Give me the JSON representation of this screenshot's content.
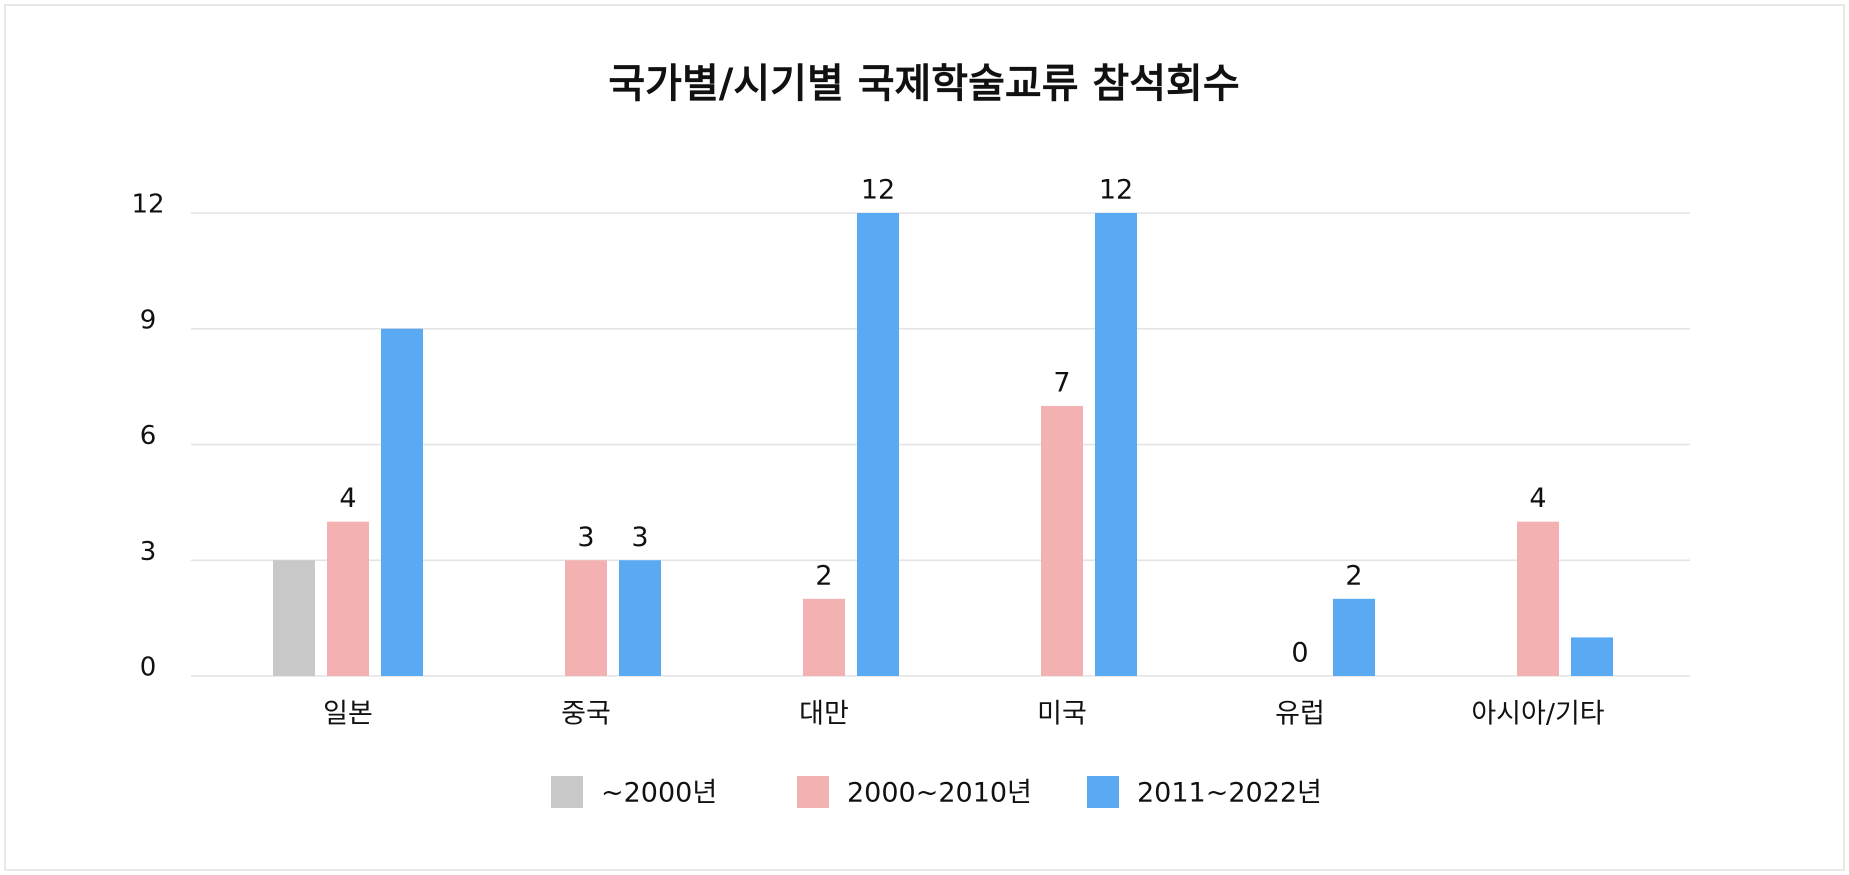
{
  "chart_data": {
    "type": "bar",
    "title": "국가별/시기별 국제학술교류 참석회수",
    "categories": [
      "일본",
      "중국",
      "대만",
      "미국",
      "유럽",
      "아시아/기타"
    ],
    "series": [
      {
        "name": "~2000년",
        "color": "#c8c8c8",
        "values": [
          3,
          null,
          null,
          null,
          null,
          null
        ],
        "value_labels": [
          null,
          null,
          null,
          null,
          null,
          null
        ]
      },
      {
        "name": "2000~2010년",
        "color": "#f4b1b1",
        "values": [
          4,
          3,
          2,
          7,
          0,
          4
        ],
        "value_labels": [
          "4",
          "3",
          "2",
          "7",
          "0",
          "4"
        ]
      },
      {
        "name": "2011~2022년",
        "color": "#5aa9f3",
        "values": [
          9,
          3,
          12,
          12,
          2,
          1
        ],
        "value_labels": [
          null,
          "3",
          "12",
          "12",
          "2",
          null
        ]
      }
    ],
    "ylim": [
      0,
      12
    ],
    "yticks": [
      0,
      3,
      6,
      9,
      12
    ],
    "grid": true
  }
}
